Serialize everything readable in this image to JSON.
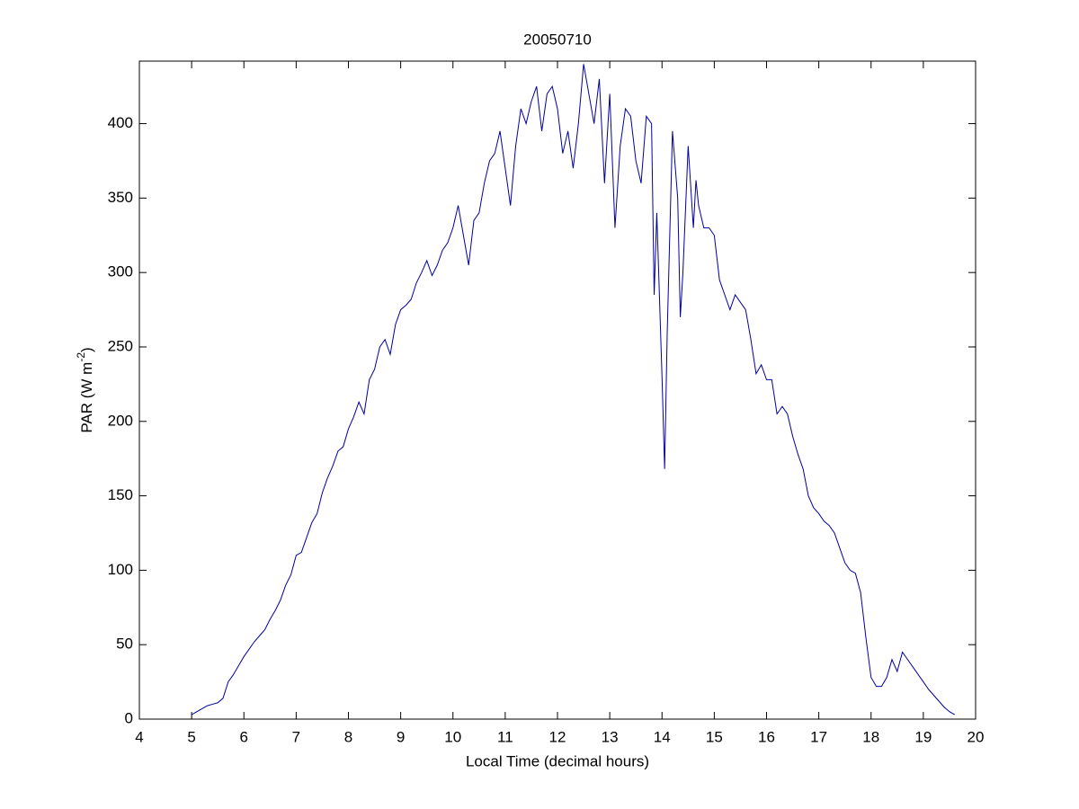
{
  "chart_data": {
    "type": "line",
    "title": "20050710",
    "x_label": "Local Time (decimal hours)",
    "y_label": [
      "PAR (W m",
      "-2",
      ")"
    ],
    "xlim": [
      4,
      20
    ],
    "xticks": [
      4,
      5,
      6,
      7,
      8,
      9,
      10,
      11,
      12,
      13,
      14,
      15,
      16,
      17,
      18,
      19,
      20
    ],
    "ylim": [
      0,
      442
    ],
    "yticks": [
      0,
      50,
      100,
      150,
      200,
      250,
      300,
      350,
      400
    ],
    "grid": false,
    "x": [
      5.0,
      5.1,
      5.2,
      5.3,
      5.4,
      5.5,
      5.6,
      5.7,
      5.8,
      5.9,
      6.0,
      6.1,
      6.2,
      6.3,
      6.4,
      6.5,
      6.6,
      6.7,
      6.8,
      6.9,
      7.0,
      7.1,
      7.2,
      7.3,
      7.4,
      7.5,
      7.6,
      7.7,
      7.8,
      7.9,
      8.0,
      8.1,
      8.2,
      8.3,
      8.4,
      8.5,
      8.6,
      8.7,
      8.8,
      8.9,
      9.0,
      9.1,
      9.2,
      9.3,
      9.4,
      9.5,
      9.6,
      9.7,
      9.8,
      9.9,
      10.0,
      10.1,
      10.2,
      10.3,
      10.4,
      10.5,
      10.6,
      10.7,
      10.8,
      10.9,
      11.0,
      11.1,
      11.2,
      11.3,
      11.4,
      11.5,
      11.6,
      11.7,
      11.8,
      11.9,
      12.0,
      12.1,
      12.2,
      12.3,
      12.4,
      12.5,
      12.6,
      12.7,
      12.8,
      12.9,
      13.0,
      13.1,
      13.2,
      13.3,
      13.4,
      13.5,
      13.6,
      13.7,
      13.8,
      13.85,
      13.9,
      14.0,
      14.05,
      14.1,
      14.2,
      14.3,
      14.35,
      14.4,
      14.5,
      14.6,
      14.65,
      14.7,
      14.8,
      14.9,
      15.0,
      15.1,
      15.2,
      15.3,
      15.4,
      15.5,
      15.6,
      15.7,
      15.8,
      15.9,
      16.0,
      16.1,
      16.2,
      16.3,
      16.4,
      16.5,
      16.6,
      16.7,
      16.8,
      16.9,
      17.0,
      17.1,
      17.2,
      17.3,
      17.4,
      17.5,
      17.6,
      17.7,
      17.8,
      17.9,
      18.0,
      18.1,
      18.2,
      18.3,
      18.4,
      18.5,
      18.6,
      18.7,
      18.8,
      18.9,
      19.0,
      19.1,
      19.2,
      19.3,
      19.4,
      19.5,
      19.6
    ],
    "series": [
      {
        "name": "PAR",
        "color": "#0000a0",
        "values": [
          3,
          5,
          7,
          9,
          10,
          11,
          14,
          25,
          30,
          36,
          42,
          47,
          52,
          56,
          60,
          67,
          73,
          80,
          90,
          97,
          110,
          112,
          122,
          132,
          138,
          152,
          162,
          170,
          180,
          183,
          195,
          203,
          213,
          205,
          228,
          235,
          250,
          255,
          245,
          265,
          275,
          278,
          282,
          293,
          300,
          308,
          298,
          305,
          315,
          320,
          330,
          345,
          325,
          305,
          335,
          340,
          360,
          375,
          380,
          395,
          370,
          345,
          385,
          410,
          400,
          415,
          425,
          395,
          420,
          425,
          410,
          380,
          395,
          370,
          400,
          440,
          420,
          400,
          430,
          360,
          420,
          330,
          385,
          410,
          405,
          375,
          360,
          405,
          400,
          285,
          340,
          230,
          168,
          260,
          395,
          350,
          270,
          300,
          385,
          330,
          362,
          345,
          330,
          330,
          325,
          295,
          285,
          275,
          285,
          280,
          275,
          255,
          232,
          238,
          228,
          228,
          205,
          210,
          205,
          190,
          178,
          168,
          150,
          142,
          138,
          133,
          130,
          125,
          115,
          105,
          100,
          98,
          85,
          55,
          28,
          22,
          22,
          28,
          40,
          32,
          45,
          40,
          35,
          30,
          25,
          20,
          16,
          12,
          8,
          5,
          3
        ]
      }
    ]
  }
}
